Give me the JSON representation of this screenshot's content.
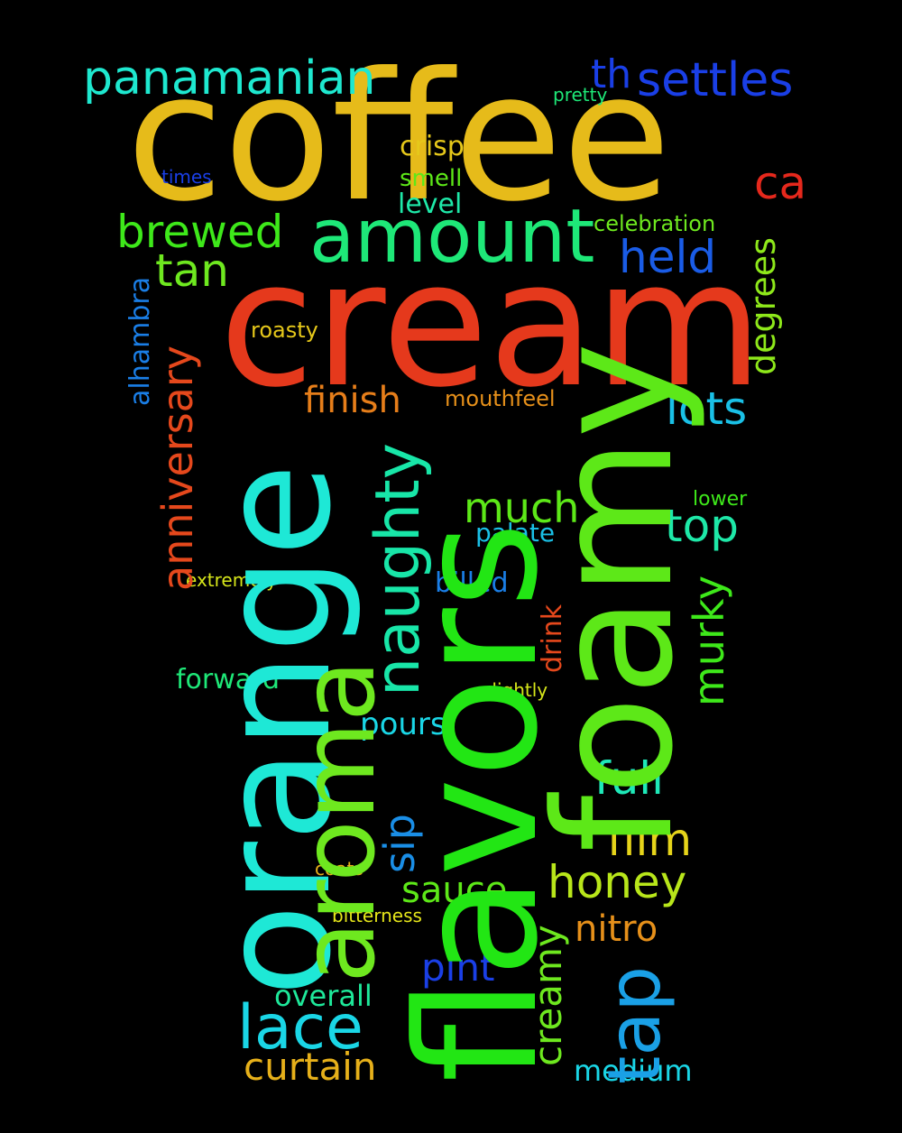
{
  "background": "#000000",
  "words": [
    {
      "text": "coffee",
      "color": "#e6bb1a"
    },
    {
      "text": "cream",
      "color": "#e5391c"
    },
    {
      "text": "orange",
      "color": "#1ee8d6"
    },
    {
      "text": "flavors",
      "color": "#22e614"
    },
    {
      "text": "foamy",
      "color": "#5de818"
    },
    {
      "text": "aroma",
      "color": "#6ee81f"
    },
    {
      "text": "amount",
      "color": "#1ee878"
    },
    {
      "text": "naughty",
      "color": "#18e6a8"
    },
    {
      "text": "tap",
      "color": "#1aa0e6"
    },
    {
      "text": "lace",
      "color": "#1ad6e6"
    },
    {
      "text": "panamanian",
      "color": "#1ee8cf"
    },
    {
      "text": "settles",
      "color": "#1a3fe6"
    },
    {
      "text": "th",
      "color": "#1a3fe6"
    },
    {
      "text": "ca",
      "color": "#e5281c"
    },
    {
      "text": "brewed",
      "color": "#3ee81a"
    },
    {
      "text": "held",
      "color": "#1a5ce6"
    },
    {
      "text": "tan",
      "color": "#6ee81f"
    },
    {
      "text": "anniversary",
      "color": "#e5481c"
    },
    {
      "text": "finish",
      "color": "#e67e1a"
    },
    {
      "text": "lots",
      "color": "#1ac0e6"
    },
    {
      "text": "much",
      "color": "#5de818"
    },
    {
      "text": "top",
      "color": "#1ee8a8"
    },
    {
      "text": "murky",
      "color": "#3ee81a"
    },
    {
      "text": "degrees",
      "color": "#8ee81a"
    },
    {
      "text": "sip",
      "color": "#1a8ee6"
    },
    {
      "text": "full",
      "color": "#1ee8b8"
    },
    {
      "text": "film",
      "color": "#e6d41a"
    },
    {
      "text": "honey",
      "color": "#b8e61a"
    },
    {
      "text": "sauce",
      "color": "#5de818"
    },
    {
      "text": "nitro",
      "color": "#e6901a"
    },
    {
      "text": "pint",
      "color": "#1a3fe6"
    },
    {
      "text": "creamy",
      "color": "#6ee81f"
    },
    {
      "text": "overall",
      "color": "#1ee89a"
    },
    {
      "text": "curtain",
      "color": "#e6b01a"
    },
    {
      "text": "medium",
      "color": "#1ad6e6"
    },
    {
      "text": "pours",
      "color": "#1ad6e6"
    },
    {
      "text": "crisp",
      "color": "#e6c81a"
    },
    {
      "text": "smell",
      "color": "#5de818"
    },
    {
      "text": "level",
      "color": "#1ee8a8"
    },
    {
      "text": "celebration",
      "color": "#6ee81f"
    },
    {
      "text": "roasty",
      "color": "#e6c81a"
    },
    {
      "text": "mouthfeel",
      "color": "#e6901a"
    },
    {
      "text": "alhambra",
      "color": "#1a7ee6"
    },
    {
      "text": "pretty",
      "color": "#1ee878"
    },
    {
      "text": "times",
      "color": "#1a3fe6"
    },
    {
      "text": "lower",
      "color": "#3ee81a"
    },
    {
      "text": "palate",
      "color": "#1ac0e6"
    },
    {
      "text": "extremely",
      "color": "#d6e61a"
    },
    {
      "text": "billed",
      "color": "#1a7ee6"
    },
    {
      "text": "drink",
      "color": "#e5481c"
    },
    {
      "text": "forward",
      "color": "#1ee878"
    },
    {
      "text": "slightly",
      "color": "#d6e61a"
    },
    {
      "text": "coats",
      "color": "#e6b01a"
    },
    {
      "text": "bitterness",
      "color": "#e6e61a"
    }
  ]
}
